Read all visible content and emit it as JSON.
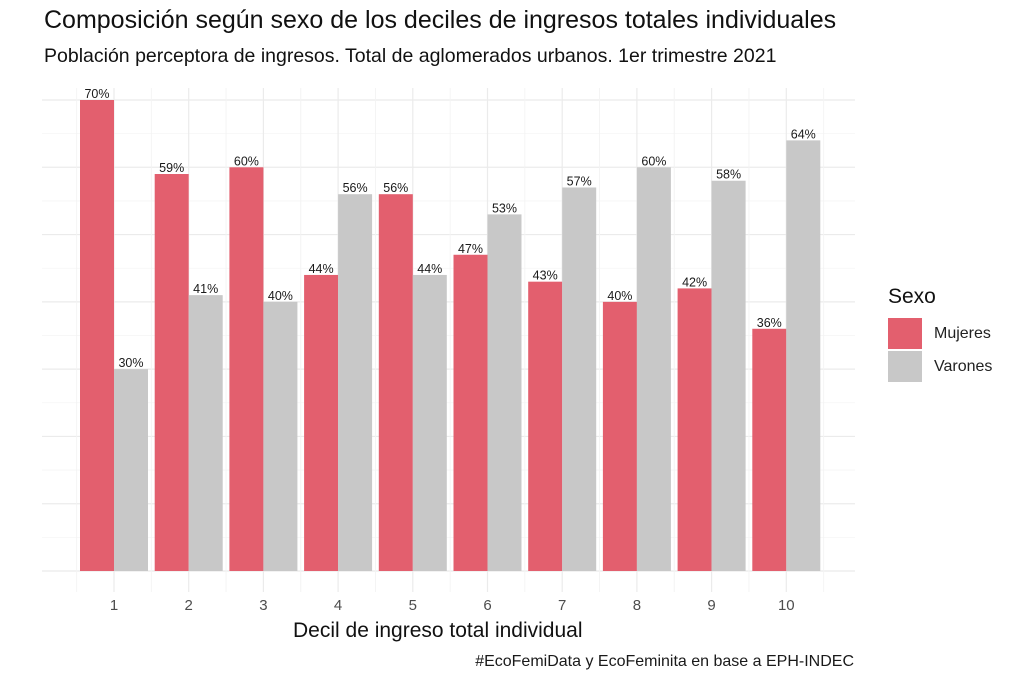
{
  "chart_data": {
    "type": "bar",
    "title": "Composición según sexo de los deciles de ingresos totales individuales",
    "subtitle": "Población perceptora de ingresos. Total de aglomerados urbanos. 1er trimestre 2021",
    "xlabel": "Decil de ingreso total individual",
    "ylabel": "",
    "caption": "#EcoFemiData y EcoFeminita en base a EPH-INDEC",
    "categories": [
      "1",
      "2",
      "3",
      "4",
      "5",
      "6",
      "7",
      "8",
      "9",
      "10"
    ],
    "series": [
      {
        "name": "Mujeres",
        "color": "#e35f6e",
        "values": [
          70,
          59,
          60,
          44,
          56,
          47,
          43,
          40,
          42,
          36
        ],
        "labels": [
          "70%",
          "59%",
          "60%",
          "44%",
          "56%",
          "47%",
          "43%",
          "40%",
          "42%",
          "36%"
        ]
      },
      {
        "name": "Varones",
        "color": "#c8c8c8",
        "values": [
          30,
          41,
          40,
          56,
          44,
          53,
          57,
          60,
          58,
          64
        ],
        "labels": [
          "30%",
          "41%",
          "40%",
          "56%",
          "44%",
          "53%",
          "57%",
          "60%",
          "58%",
          "64%"
        ]
      }
    ],
    "ylim": [
      0,
      70
    ],
    "ygrid_step": 10,
    "y_tick_labels_shown": false,
    "grid": true,
    "legend": {
      "title": "Sexo",
      "position": "right"
    }
  }
}
